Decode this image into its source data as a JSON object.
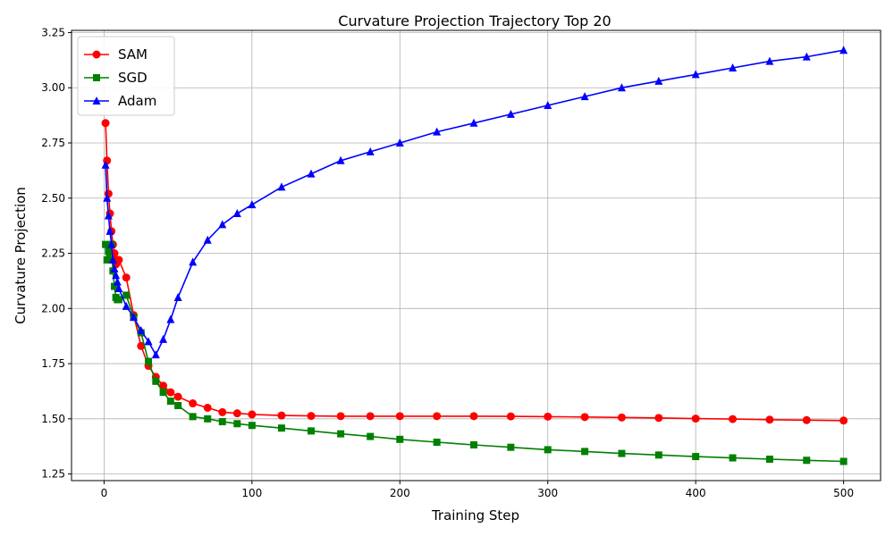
{
  "chart_data": {
    "type": "line",
    "title": "Curvature Projection Trajectory Top 20",
    "xlabel": "Training Step",
    "ylabel": "Curvature Projection",
    "xlim": [
      -22,
      525
    ],
    "ylim": [
      1.22,
      3.26
    ],
    "xticks": [
      0,
      100,
      200,
      300,
      400,
      500
    ],
    "xtick_labels": [
      "0",
      "100",
      "200",
      "300",
      "400",
      "500"
    ],
    "yticks": [
      1.25,
      1.5,
      1.75,
      2.0,
      2.25,
      2.5,
      2.75,
      3.0,
      3.25
    ],
    "ytick_labels": [
      "1.25",
      "1.50",
      "1.75",
      "2.00",
      "2.25",
      "2.50",
      "2.75",
      "3.00",
      "3.25"
    ],
    "grid": true,
    "legend_position": "top-left",
    "series": [
      {
        "name": "SAM",
        "color": "#ff0000",
        "marker": "circle",
        "x": [
          1,
          2,
          3,
          4,
          5,
          6,
          7,
          8,
          9,
          10,
          15,
          20,
          25,
          30,
          35,
          40,
          45,
          50,
          60,
          70,
          80,
          90,
          100,
          120,
          140,
          160,
          180,
          200,
          225,
          250,
          275,
          300,
          325,
          350,
          375,
          400,
          425,
          450,
          475,
          500
        ],
        "y": [
          2.84,
          2.67,
          2.52,
          2.43,
          2.35,
          2.29,
          2.25,
          2.2,
          2.22,
          2.22,
          2.14,
          1.97,
          1.83,
          1.74,
          1.69,
          1.65,
          1.62,
          1.6,
          1.57,
          1.55,
          1.53,
          1.525,
          1.52,
          1.515,
          1.513,
          1.512,
          1.512,
          1.512,
          1.512,
          1.512,
          1.511,
          1.51,
          1.508,
          1.506,
          1.504,
          1.501,
          1.499,
          1.496,
          1.494,
          1.492
        ]
      },
      {
        "name": "SGD",
        "color": "#008000",
        "marker": "square",
        "x": [
          1,
          2,
          3,
          4,
          5,
          6,
          7,
          8,
          9,
          10,
          15,
          20,
          25,
          30,
          35,
          40,
          45,
          50,
          60,
          70,
          80,
          90,
          100,
          120,
          140,
          160,
          180,
          200,
          225,
          250,
          275,
          300,
          325,
          350,
          375,
          400,
          425,
          450,
          475,
          500
        ],
        "y": [
          2.29,
          2.22,
          2.26,
          2.22,
          2.29,
          2.17,
          2.1,
          2.05,
          2.04,
          2.04,
          2.06,
          1.96,
          1.89,
          1.76,
          1.67,
          1.62,
          1.58,
          1.56,
          1.51,
          1.5,
          1.487,
          1.478,
          1.47,
          1.458,
          1.445,
          1.432,
          1.42,
          1.407,
          1.394,
          1.382,
          1.371,
          1.36,
          1.352,
          1.343,
          1.336,
          1.329,
          1.323,
          1.317,
          1.312,
          1.307
        ]
      },
      {
        "name": "Adam",
        "color": "#0000ff",
        "marker": "triangle",
        "x": [
          1,
          2,
          3,
          4,
          5,
          6,
          7,
          8,
          9,
          10,
          15,
          20,
          25,
          30,
          35,
          40,
          45,
          50,
          60,
          70,
          80,
          90,
          100,
          120,
          140,
          160,
          180,
          200,
          225,
          250,
          275,
          300,
          325,
          350,
          375,
          400,
          425,
          450,
          475,
          500
        ],
        "y": [
          2.65,
          2.5,
          2.42,
          2.35,
          2.29,
          2.22,
          2.18,
          2.15,
          2.12,
          2.09,
          2.01,
          1.96,
          1.9,
          1.85,
          1.79,
          1.86,
          1.95,
          2.05,
          2.21,
          2.31,
          2.38,
          2.43,
          2.47,
          2.55,
          2.61,
          2.67,
          2.71,
          2.75,
          2.8,
          2.84,
          2.88,
          2.92,
          2.96,
          3.0,
          3.03,
          3.06,
          3.09,
          3.12,
          3.14,
          3.17
        ]
      }
    ]
  }
}
